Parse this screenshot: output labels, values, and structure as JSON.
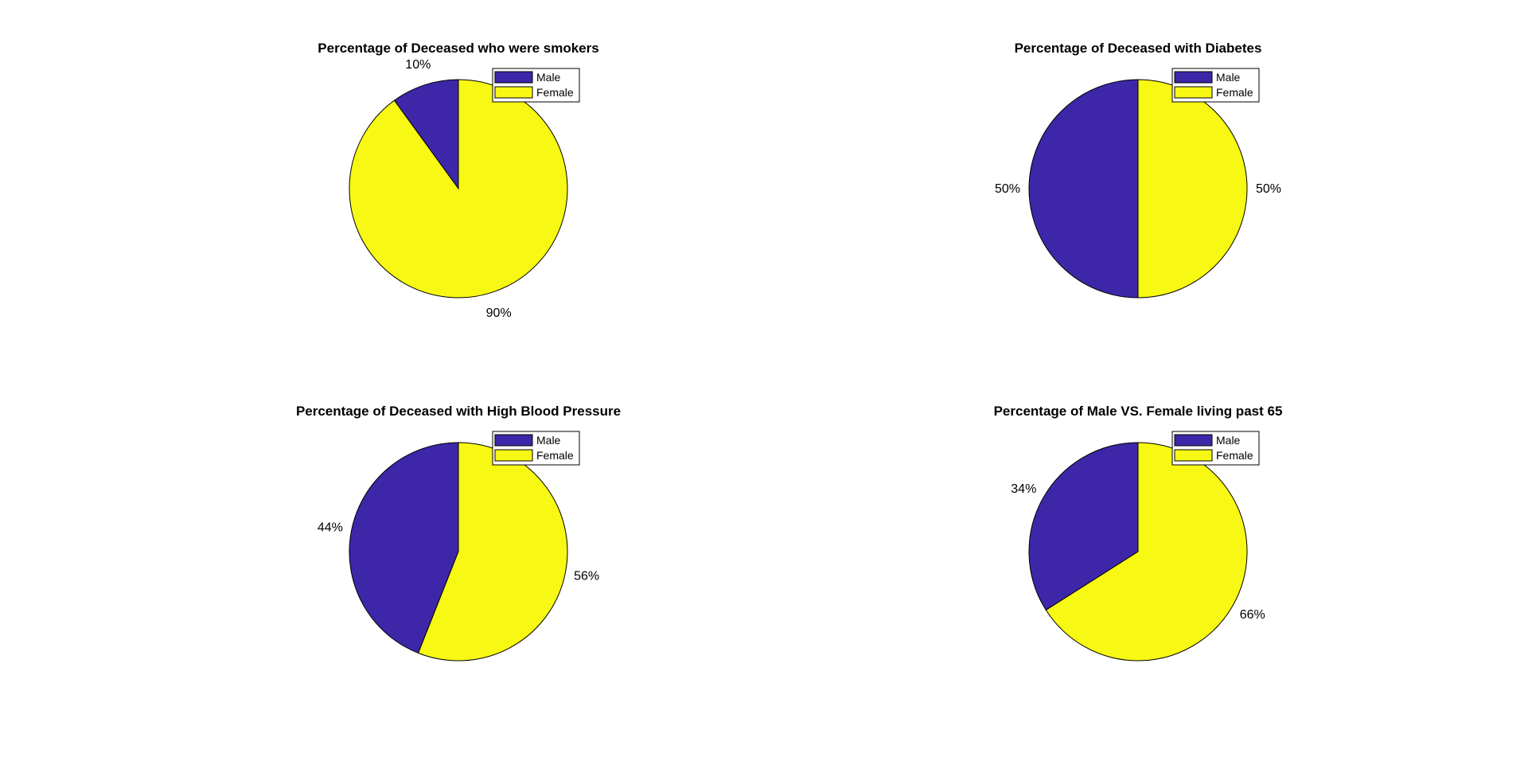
{
  "colors": {
    "male": "#3d27a8",
    "female": "#f8f815",
    "outline": "#000000",
    "background": "#ffffff"
  },
  "chart_data": [
    {
      "type": "pie",
      "title": "Percentage of Deceased who were smokers",
      "legend": {
        "placement": "top-right",
        "entries": [
          "Male",
          "Female"
        ]
      },
      "slices": [
        {
          "name": "Male",
          "value": 10,
          "label": "10%"
        },
        {
          "name": "Female",
          "value": 90,
          "label": "90%"
        }
      ]
    },
    {
      "type": "pie",
      "title": "Percentage of Deceased with Diabetes",
      "legend": {
        "placement": "top-right",
        "entries": [
          "Male",
          "Female"
        ]
      },
      "slices": [
        {
          "name": "Male",
          "value": 50,
          "label": "50%"
        },
        {
          "name": "Female",
          "value": 50,
          "label": "50%"
        }
      ]
    },
    {
      "type": "pie",
      "title": "Percentage of Deceased with High Blood Pressure",
      "legend": {
        "placement": "top-right",
        "entries": [
          "Male",
          "Female"
        ]
      },
      "slices": [
        {
          "name": "Male",
          "value": 44,
          "label": "44%"
        },
        {
          "name": "Female",
          "value": 56,
          "label": "56%"
        }
      ]
    },
    {
      "type": "pie",
      "title": "Percentage of Male VS. Female living past 65",
      "legend": {
        "placement": "top-right",
        "entries": [
          "Male",
          "Female"
        ]
      },
      "slices": [
        {
          "name": "Male",
          "value": 34,
          "label": "34%"
        },
        {
          "name": "Female",
          "value": 66,
          "label": "66%"
        }
      ]
    }
  ]
}
